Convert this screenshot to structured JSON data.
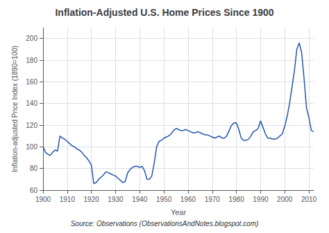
{
  "chart_data": {
    "type": "line",
    "title": "Inflation-Adjusted U.S. Home Prices Since 1900",
    "xlabel": "Year",
    "ylabel": "Inflation-adjusted Price Index (1890=100)",
    "annotation": "Source: Observations (ObservationsAndNotes.blogspot.com)",
    "color": "#2255aa",
    "grid": true,
    "xlim": [
      1900,
      2012
    ],
    "ylim": [
      60,
      210
    ],
    "xticks": [
      1900,
      1910,
      1920,
      1930,
      1940,
      1950,
      1960,
      1970,
      1980,
      1990,
      2000,
      2010
    ],
    "yticks": [
      60,
      80,
      100,
      120,
      140,
      160,
      180,
      200
    ],
    "x": [
      1900,
      1901,
      1902,
      1903,
      1904,
      1905,
      1906,
      1907,
      1908,
      1909,
      1910,
      1911,
      1912,
      1913,
      1914,
      1915,
      1916,
      1917,
      1918,
      1919,
      1920,
      1921,
      1922,
      1923,
      1924,
      1925,
      1926,
      1927,
      1928,
      1929,
      1930,
      1931,
      1932,
      1933,
      1934,
      1935,
      1936,
      1937,
      1938,
      1939,
      1940,
      1941,
      1942,
      1943,
      1944,
      1945,
      1946,
      1947,
      1948,
      1949,
      1950,
      1951,
      1952,
      1953,
      1954,
      1955,
      1956,
      1957,
      1958,
      1959,
      1960,
      1961,
      1962,
      1963,
      1964,
      1965,
      1966,
      1967,
      1968,
      1969,
      1970,
      1971,
      1972,
      1973,
      1974,
      1975,
      1976,
      1977,
      1978,
      1979,
      1980,
      1981,
      1982,
      1983,
      1984,
      1985,
      1986,
      1987,
      1988,
      1989,
      1990,
      1991,
      1992,
      1993,
      1994,
      1995,
      1996,
      1997,
      1998,
      1999,
      2000,
      2001,
      2002,
      2003,
      2004,
      2005,
      2006,
      2007,
      2008,
      2009,
      2010,
      2011,
      2012
    ],
    "values": [
      100,
      95,
      93,
      92,
      95,
      97,
      96,
      110,
      108,
      107,
      105,
      103,
      101,
      100,
      98,
      97,
      95,
      92,
      90,
      87,
      83,
      66,
      67,
      70,
      72,
      74,
      77,
      76,
      75,
      74,
      73,
      71,
      69,
      67,
      68,
      76,
      79,
      81,
      82,
      82,
      81,
      82,
      78,
      70,
      70,
      73,
      85,
      100,
      105,
      106,
      108,
      109,
      110,
      112,
      115,
      117,
      116,
      115,
      115,
      116,
      115,
      114,
      113,
      113,
      114,
      113,
      112,
      111,
      111,
      110,
      109,
      108,
      109,
      110,
      108,
      108,
      110,
      115,
      120,
      122,
      122,
      116,
      108,
      106,
      106,
      107,
      110,
      114,
      115,
      117,
      124,
      118,
      112,
      108,
      108,
      107,
      107,
      108,
      110,
      112,
      119,
      128,
      140,
      155,
      170,
      190,
      196,
      187,
      163,
      136,
      127,
      115,
      114
    ]
  }
}
